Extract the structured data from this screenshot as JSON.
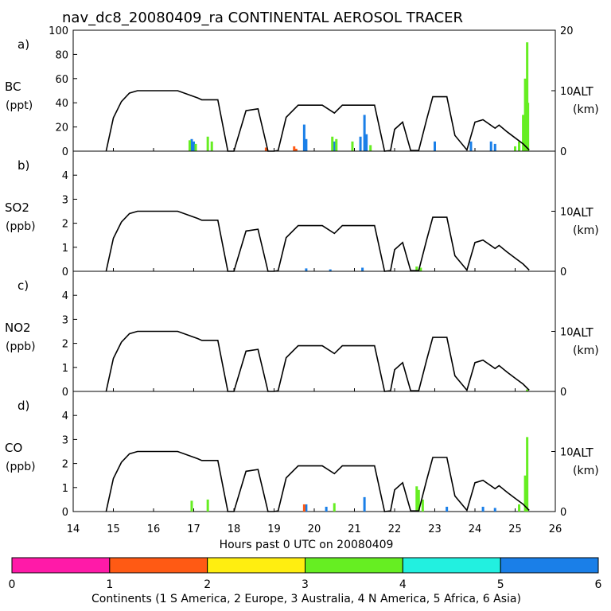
{
  "title": "nav_dc8_20080409_ra CONTINENTAL AEROSOL TRACER",
  "xlabel": "Hours past 0 UTC on 20080409",
  "x_ticks": [
    "14",
    "15",
    "16",
    "17",
    "18",
    "19",
    "20",
    "21",
    "22",
    "23",
    "24",
    "25",
    "26"
  ],
  "colorbar": {
    "ticks": [
      "0",
      "1",
      "2",
      "3",
      "4",
      "5",
      "6"
    ],
    "colors": [
      "#ff1aa8",
      "#ff5a14",
      "#ffee10",
      "#66ee22",
      "#22f0e0",
      "#1a7fe8"
    ],
    "label": "Continents (1 S America, 2 Europe, 3 Australia, 4 N America, 5 Africa, 6 Asia)"
  },
  "colors": {
    "altitude": "#000000",
    "asia": "#1a7fe8",
    "n_america": "#66ee22",
    "europe": "#ff5a14"
  },
  "chart_data": [
    {
      "type": "bar+line",
      "panel": "a)",
      "species": "BC",
      "units": "(ppt)",
      "ylim": [
        0,
        100
      ],
      "y_ticks": [
        "0",
        "20",
        "40",
        "60",
        "80",
        "100"
      ],
      "alt_label": "ALT",
      "alt_units": "(km)",
      "alt_ticks": [
        "0",
        "10",
        "20"
      ],
      "alt_lim": [
        0,
        20
      ],
      "x_range": [
        14,
        26
      ],
      "series": [
        {
          "name": "Asia",
          "color": "#1a7fe8",
          "points": [
            [
              16.95,
              10
            ],
            [
              17.0,
              8
            ],
            [
              19.75,
              22
            ],
            [
              19.8,
              10
            ],
            [
              20.5,
              8
            ],
            [
              21.25,
              30
            ],
            [
              21.3,
              14
            ],
            [
              21.15,
              12
            ],
            [
              23.0,
              8
            ],
            [
              23.9,
              8
            ],
            [
              24.4,
              8
            ],
            [
              24.5,
              6
            ],
            [
              25.1,
              5
            ]
          ]
        },
        {
          "name": "N America",
          "color": "#66ee22",
          "points": [
            [
              16.9,
              9
            ],
            [
              17.05,
              6
            ],
            [
              17.35,
              12
            ],
            [
              17.45,
              8
            ],
            [
              20.45,
              12
            ],
            [
              20.55,
              10
            ],
            [
              20.95,
              8
            ],
            [
              21.4,
              5
            ],
            [
              25.0,
              4
            ],
            [
              25.1,
              8
            ],
            [
              25.2,
              30
            ],
            [
              25.25,
              60
            ],
            [
              25.3,
              90
            ],
            [
              25.32,
              40
            ]
          ]
        },
        {
          "name": "Europe",
          "color": "#ff5a14",
          "points": [
            [
              18.8,
              3
            ],
            [
              19.5,
              4
            ],
            [
              19.55,
              2
            ]
          ]
        }
      ]
    },
    {
      "type": "bar+line",
      "panel": "b)",
      "species": "SO2",
      "units": "(ppb)",
      "ylim": [
        0,
        5
      ],
      "y_ticks": [
        "0",
        "1",
        "2",
        "3",
        "4"
      ],
      "alt_label": "ALT",
      "alt_units": "(km)",
      "alt_ticks": [
        "0",
        "10"
      ],
      "alt_lim": [
        0,
        20
      ],
      "x_range": [
        14,
        26
      ],
      "series": [
        {
          "name": "Asia",
          "color": "#1a7fe8",
          "points": [
            [
              19.8,
              0.12
            ],
            [
              20.4,
              0.08
            ],
            [
              21.2,
              0.15
            ]
          ]
        },
        {
          "name": "N America",
          "color": "#66ee22",
          "points": [
            [
              22.55,
              0.2
            ],
            [
              22.65,
              0.15
            ]
          ]
        }
      ]
    },
    {
      "type": "bar+line",
      "panel": "c)",
      "species": "NO2",
      "units": "(ppb)",
      "ylim": [
        0,
        5
      ],
      "y_ticks": [
        "0",
        "1",
        "2",
        "3",
        "4"
      ],
      "alt_label": "ALT",
      "alt_units": "(km)",
      "alt_ticks": [
        "0",
        "10"
      ],
      "alt_lim": [
        0,
        20
      ],
      "x_range": [
        14,
        26
      ],
      "series": [
        {
          "name": "N America",
          "color": "#66ee22",
          "points": [
            [
              25.3,
              0.08
            ]
          ]
        }
      ]
    },
    {
      "type": "bar+line",
      "panel": "d)",
      "species": "CO",
      "units": "(ppb)",
      "ylim": [
        0,
        5
      ],
      "y_ticks": [
        "0",
        "1",
        "2",
        "3",
        "4"
      ],
      "alt_label": "ALT",
      "alt_units": "(km)",
      "alt_ticks": [
        "0",
        "10"
      ],
      "alt_lim": [
        0,
        20
      ],
      "x_range": [
        14,
        26
      ],
      "series": [
        {
          "name": "Asia",
          "color": "#1a7fe8",
          "points": [
            [
              19.8,
              0.3
            ],
            [
              20.3,
              0.2
            ],
            [
              21.25,
              0.6
            ],
            [
              23.3,
              0.2
            ],
            [
              24.2,
              0.2
            ],
            [
              24.5,
              0.15
            ]
          ]
        },
        {
          "name": "N America",
          "color": "#66ee22",
          "points": [
            [
              16.95,
              0.45
            ],
            [
              17.35,
              0.5
            ],
            [
              20.5,
              0.35
            ],
            [
              22.55,
              1.05
            ],
            [
              22.6,
              0.9
            ],
            [
              22.7,
              0.5
            ],
            [
              25.1,
              0.3
            ],
            [
              25.25,
              1.5
            ],
            [
              25.3,
              3.1
            ]
          ]
        },
        {
          "name": "Europe",
          "color": "#ff5a14",
          "points": [
            [
              19.75,
              0.3
            ]
          ]
        }
      ]
    }
  ],
  "altitude_km": {
    "x": [
      14.82,
      15.0,
      15.2,
      15.4,
      15.6,
      16.0,
      16.6,
      17.1,
      17.2,
      17.6,
      17.85,
      18.0,
      18.3,
      18.6,
      18.85,
      19.0,
      19.1,
      19.3,
      19.6,
      20.2,
      20.5,
      20.7,
      21.1,
      21.5,
      21.75,
      21.9,
      22.0,
      22.2,
      22.4,
      22.6,
      22.8,
      22.95,
      23.3,
      23.5,
      23.8,
      24.0,
      24.2,
      24.5,
      24.6,
      24.8,
      25.0,
      25.2,
      25.35
    ],
    "y": [
      0,
      5.5,
      8.2,
      9.6,
      10.0,
      10.0,
      10.0,
      8.8,
      8.5,
      8.5,
      0,
      0,
      6.7,
      7.0,
      0,
      0,
      0.1,
      5.6,
      7.6,
      7.6,
      6.3,
      7.6,
      7.6,
      7.6,
      0,
      0.1,
      3.6,
      4.8,
      0.1,
      0.1,
      5.3,
      9.0,
      9.0,
      2.6,
      0.2,
      4.8,
      5.2,
      3.8,
      4.3,
      3.2,
      2.2,
      1.2,
      0.2
    ]
  }
}
